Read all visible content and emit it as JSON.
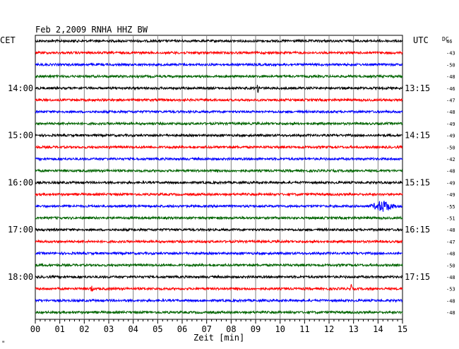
{
  "chart_data": {
    "type": "line",
    "title": "Feb 2,2009   RNHA HHZ BW",
    "left_axis_label": "CET",
    "right_axis_label": "UTC",
    "dc_label": "DC",
    "xlabel": "Zeit [min]",
    "xlim": [
      0,
      15
    ],
    "x_tick_labels": [
      "00",
      "01",
      "02",
      "03",
      "04",
      "05",
      "06",
      "07",
      "08",
      "09",
      "10",
      "11",
      "12",
      "13",
      "14",
      "15"
    ],
    "trace_colors": [
      "#000000",
      "#ff0000",
      "#0000ff",
      "#006400"
    ],
    "hour_labels": [
      {
        "trace": 4,
        "cet": "14:00",
        "utc": "13:15"
      },
      {
        "trace": 8,
        "cet": "15:00",
        "utc": "14:15"
      },
      {
        "trace": 12,
        "cet": "16:00",
        "utc": "15:15"
      },
      {
        "trace": 16,
        "cet": "17:00",
        "utc": "16:15"
      },
      {
        "trace": 20,
        "cet": "18:00",
        "utc": "17:15"
      }
    ],
    "dc_values": [
      "46",
      "-43",
      "-50",
      "-48",
      "-46",
      "-47",
      "-48",
      "-49",
      "-49",
      "-50",
      "-42",
      "-48",
      "-49",
      "-49",
      "-55",
      "-51",
      "-48",
      "-47",
      "-48",
      "-50",
      "-48",
      "-53",
      "-48",
      "-48"
    ],
    "events": [
      {
        "trace": 14,
        "minute": 14.2,
        "amplitude": "large"
      },
      {
        "trace": 21,
        "minute": 2.3,
        "amplitude": "small"
      },
      {
        "trace": 21,
        "minute": 12.9,
        "amplitude": "small"
      },
      {
        "trace": 4,
        "minute": 9.1,
        "amplitude": "small"
      }
    ]
  },
  "corner_mark": "\""
}
